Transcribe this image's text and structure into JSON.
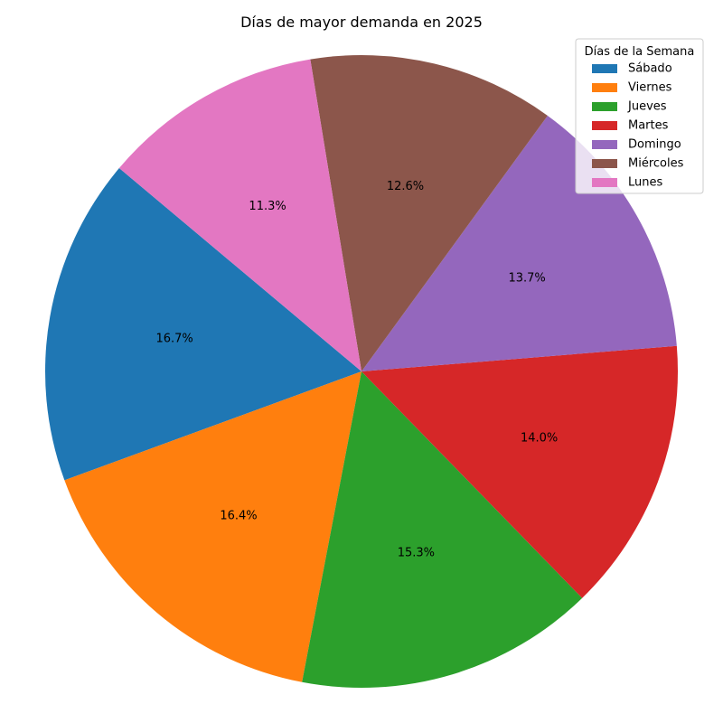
{
  "chart_data": {
    "type": "pie",
    "title": "Días de mayor demanda en 2025",
    "categories": [
      "Sábado",
      "Viernes",
      "Jueves",
      "Martes",
      "Domingo",
      "Miércoles",
      "Lunes"
    ],
    "values": [
      16.7,
      16.4,
      15.3,
      14.0,
      13.7,
      12.6,
      11.3
    ],
    "labels": [
      "16.7%",
      "16.4%",
      "15.3%",
      "14.0%",
      "13.7%",
      "12.6%",
      "11.3%"
    ],
    "colors": [
      "#1f77b4",
      "#ff7f0e",
      "#2ca02c",
      "#d62728",
      "#9467bd",
      "#8c564b",
      "#e377c2"
    ],
    "legend": {
      "title": "Días de la Semana",
      "placement": "top-right"
    },
    "start_angle_deg": 140,
    "direction": "counterclockwise"
  }
}
